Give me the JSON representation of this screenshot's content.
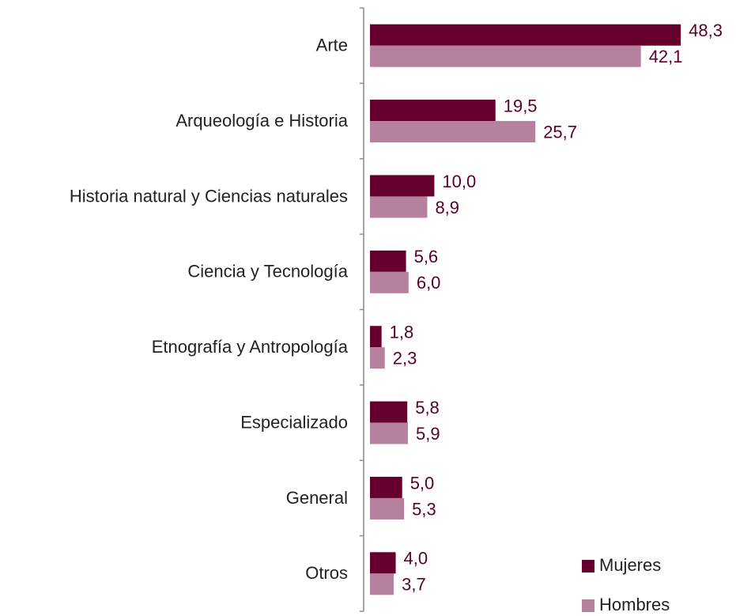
{
  "chart_data": {
    "type": "hbar",
    "categories": [
      "Arte",
      "Arqueología e Historia",
      "Historia natural y Ciencias naturales",
      "Ciencia y Tecnología",
      "Etnografía y Antropología",
      "Especializado",
      "General",
      "Otros"
    ],
    "series": [
      {
        "name": "Mujeres",
        "color": "#65002d",
        "values": [
          48.3,
          19.5,
          10.0,
          5.6,
          1.8,
          5.8,
          5.0,
          4.0
        ],
        "value_labels": [
          "48,3",
          "19,5",
          "10,0",
          "5,6",
          "1,8",
          "5,8",
          "5,0",
          "4,0"
        ]
      },
      {
        "name": "Hombres",
        "color": "#b5819c",
        "values": [
          42.1,
          25.7,
          8.9,
          6.0,
          2.3,
          5.9,
          5.3,
          3.7
        ],
        "value_labels": [
          "42,1",
          "25,7",
          "8,9",
          "6,0",
          "2,3",
          "5,9",
          "5,3",
          "3,7"
        ]
      }
    ],
    "legend": "bottom-right"
  }
}
